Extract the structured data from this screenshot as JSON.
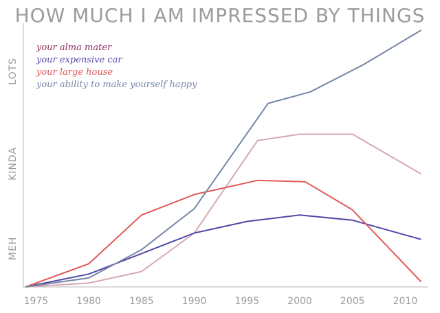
{
  "chart_data": {
    "type": "line",
    "title": "HOW MUCH I AM IMPRESSED BY THINGS",
    "xlabel": "",
    "ylabel": "",
    "x_ticks": [
      1975,
      1980,
      1985,
      1990,
      1995,
      2000,
      2005,
      2010
    ],
    "xlim": [
      1973.8,
      2011.6
    ],
    "ylim": [
      0,
      100
    ],
    "y_tick_labels": [
      {
        "label": "MEH",
        "value": 15
      },
      {
        "label": "KINDA",
        "value": 48
      },
      {
        "label": "LOTS",
        "value": 84
      }
    ],
    "grid": false,
    "legend_position": "top-left",
    "series": [
      {
        "name": "your alma mater",
        "color": "#8b2c5e",
        "line_color": "#d5a9b5",
        "x": [
          1974,
          1980,
          1985,
          1990,
          1996,
          2000,
          2005,
          2011.5
        ],
        "y": [
          0,
          1.5,
          6,
          21,
          57,
          59.5,
          59.5,
          44
        ]
      },
      {
        "name": "your expensive car",
        "color": "#5048a8",
        "line_color": "#5048a8",
        "x": [
          1974,
          1980,
          1985,
          1990,
          1995,
          2000,
          2005,
          2011.5
        ],
        "y": [
          0,
          5,
          13,
          21,
          25.5,
          28,
          26,
          18.5
        ]
      },
      {
        "name": "your large house",
        "color": "#e05858",
        "line_color": "#e05858",
        "x": [
          1974,
          1980,
          1985,
          1990,
          1996,
          2000.5,
          2005,
          2011.5
        ],
        "y": [
          0,
          9,
          28,
          36,
          41.5,
          41,
          30,
          2
        ]
      },
      {
        "name": "your ability to make yourself happy",
        "color": "#7586a6",
        "line_color": "#7586a6",
        "x": [
          1974,
          1980,
          1985,
          1990,
          1997,
          2001,
          2006,
          2011.5
        ],
        "y": [
          0,
          3.5,
          14.5,
          30.5,
          71.5,
          76,
          86.5,
          100
        ]
      }
    ]
  }
}
